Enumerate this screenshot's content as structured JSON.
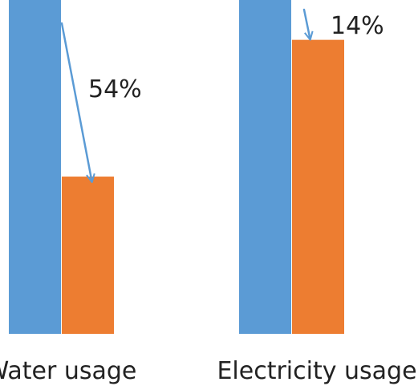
{
  "chart_data": {
    "type": "bar",
    "title": "",
    "xlabel": "",
    "ylabel": "",
    "categories": [
      "Water usage",
      "Electricity usage"
    ],
    "series": [
      {
        "values": [
          100,
          100
        ],
        "color": "#5B9BD5"
      },
      {
        "values": [
          46,
          86
        ],
        "color": "#ED7D31"
      }
    ],
    "change_labels": [
      "54%",
      "14%"
    ],
    "arrow_color": "#5B9BD5",
    "ylim": [
      0,
      100
    ],
    "grid": false,
    "legend": "none"
  }
}
